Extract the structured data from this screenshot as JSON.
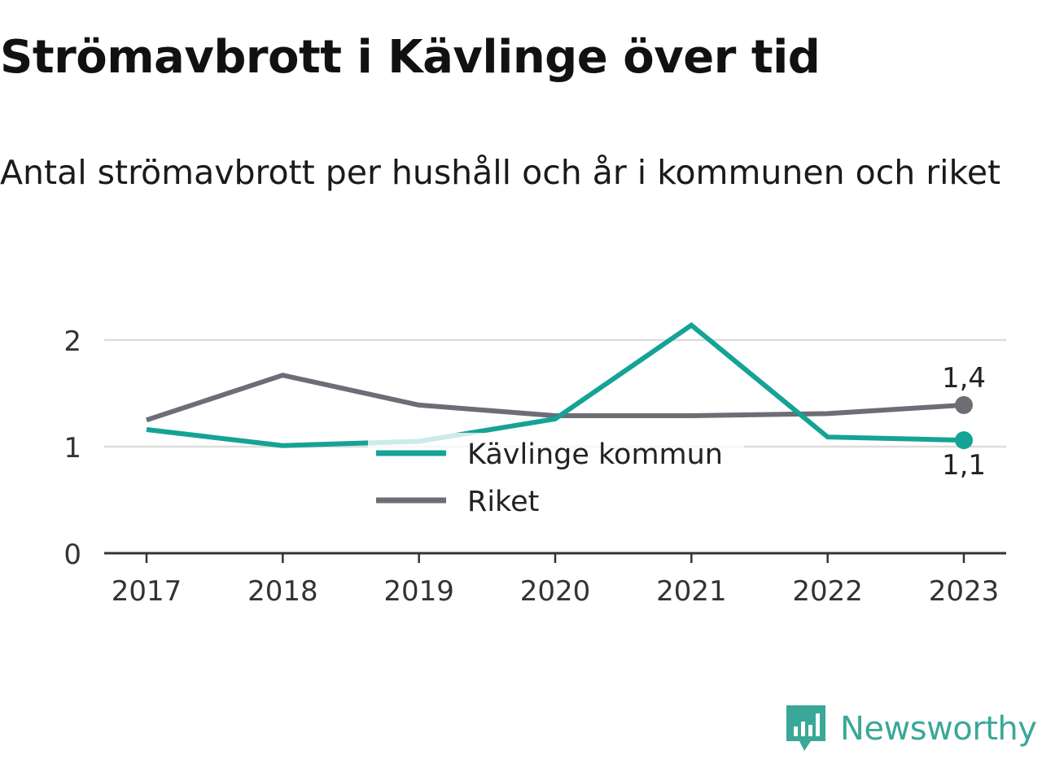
{
  "title": "Strömavbrott i Kävlinge över tid",
  "subtitle": "Antal strömavbrott per hushåll och år i kommunen och riket",
  "brand": {
    "name": "Newsworthy",
    "icon": "newsworthy-logo-icon",
    "color": "#3aa898"
  },
  "chart_data": {
    "type": "line",
    "title": "Strömavbrott i Kävlinge över tid",
    "subtitle": "Antal strömavbrott per hushåll och år i kommunen och riket",
    "x": [
      "2017",
      "2018",
      "2019",
      "2020",
      "2021",
      "2022",
      "2023"
    ],
    "ylim": [
      0,
      2.35
    ],
    "yticks": [
      0,
      1,
      2
    ],
    "ytick_labels": [
      "0",
      "1",
      "2"
    ],
    "grid": true,
    "legend_position": "center",
    "series": [
      {
        "name": "Kävlinge kommun",
        "color": "#14a396",
        "values": [
          1.16,
          1.01,
          1.05,
          1.26,
          2.14,
          1.09,
          1.06
        ],
        "end_label": "1,1"
      },
      {
        "name": "Riket",
        "color": "#6e6d75",
        "values": [
          1.25,
          1.67,
          1.39,
          1.29,
          1.29,
          1.31,
          1.39
        ],
        "end_label": "1,4"
      }
    ]
  }
}
